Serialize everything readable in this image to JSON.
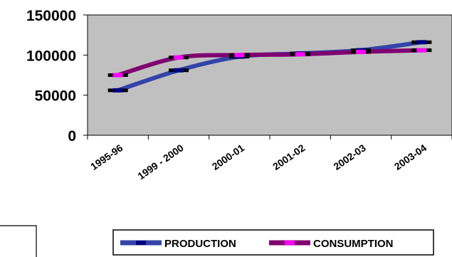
{
  "chart_data": {
    "type": "line",
    "title": "",
    "xlabel": "",
    "ylabel": "",
    "categories": [
      "1995-96",
      "1999 - 2000",
      "2000-01",
      "2001-02",
      "2002-03",
      "2003-04"
    ],
    "series": [
      {
        "name": "PRODUCTION",
        "values": [
          56000,
          81000,
          98000,
          102000,
          106000,
          116000
        ],
        "color": "#3344aa",
        "marker_color": "#000080"
      },
      {
        "name": "CONSUMPTION",
        "values": [
          75000,
          97000,
          100000,
          101000,
          104000,
          106000
        ],
        "color": "#800070",
        "marker_color": "#ff00ff"
      }
    ],
    "yticks": [
      "0",
      "50000",
      "100000",
      "150000"
    ],
    "ylim": [
      0,
      150000
    ],
    "grid": false,
    "plot_background": "#c0c0c0",
    "legend": "bottom-right"
  }
}
